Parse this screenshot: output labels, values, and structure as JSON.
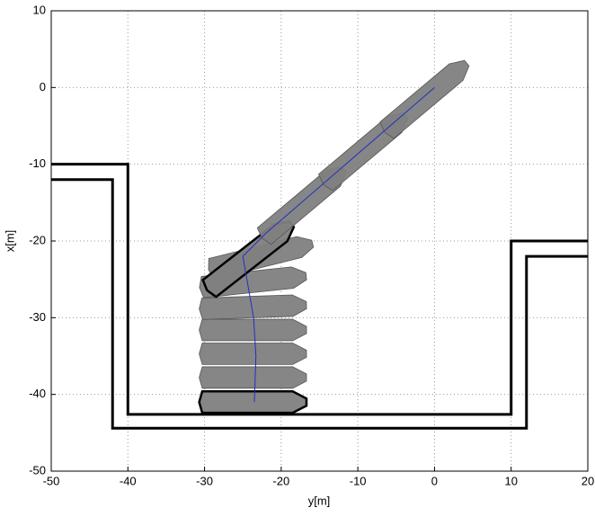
{
  "chart_data": {
    "type": "line",
    "xlabel": "y[m]",
    "ylabel": "x[m]",
    "xlim": [
      -50,
      20
    ],
    "ylim": [
      -50,
      10
    ],
    "xticks": [
      -50,
      -40,
      -30,
      -20,
      -10,
      0,
      10,
      20
    ],
    "yticks": [
      -50,
      -40,
      -30,
      -20,
      -10,
      0,
      10
    ],
    "grid": true,
    "series": [
      {
        "color": "#000000",
        "x": [
          -50,
          -40,
          -40,
          10,
          10,
          20
        ],
        "values": [
          -10,
          -10,
          -42.6,
          -42.6,
          -20,
          -20
        ]
      },
      {
        "color": "#000000",
        "x": [
          -50,
          -42,
          -42,
          12,
          12,
          20
        ],
        "values": [
          -12,
          -12,
          -44.4,
          -44.4,
          -22,
          -22
        ]
      },
      {
        "color": "#2030c0",
        "x": [
          -23.5,
          -23.3,
          -23.6,
          -24.3,
          -25,
          -22,
          0
        ],
        "values": [
          -41,
          -35,
          -30,
          -26,
          -22,
          -19,
          0
        ]
      }
    ],
    "ships": {
      "color": "#808080",
      "x": [
        -23.5,
        -23.5,
        -23.5,
        -23.5,
        -23.5,
        -23.5,
        -22.5,
        -24,
        -17,
        -9,
        -1
      ],
      "values": [
        -41,
        -37.8,
        -34.7,
        -31.6,
        -28.6,
        -25.3,
        -22,
        -22,
        -15,
        -8,
        -1.2
      ],
      "angle": [
        0,
        0,
        0,
        0,
        2,
        6,
        14,
        38,
        40,
        40,
        40
      ],
      "outlined": [
        true,
        false,
        false,
        false,
        false,
        false,
        false,
        true,
        false,
        false,
        false
      ]
    }
  }
}
